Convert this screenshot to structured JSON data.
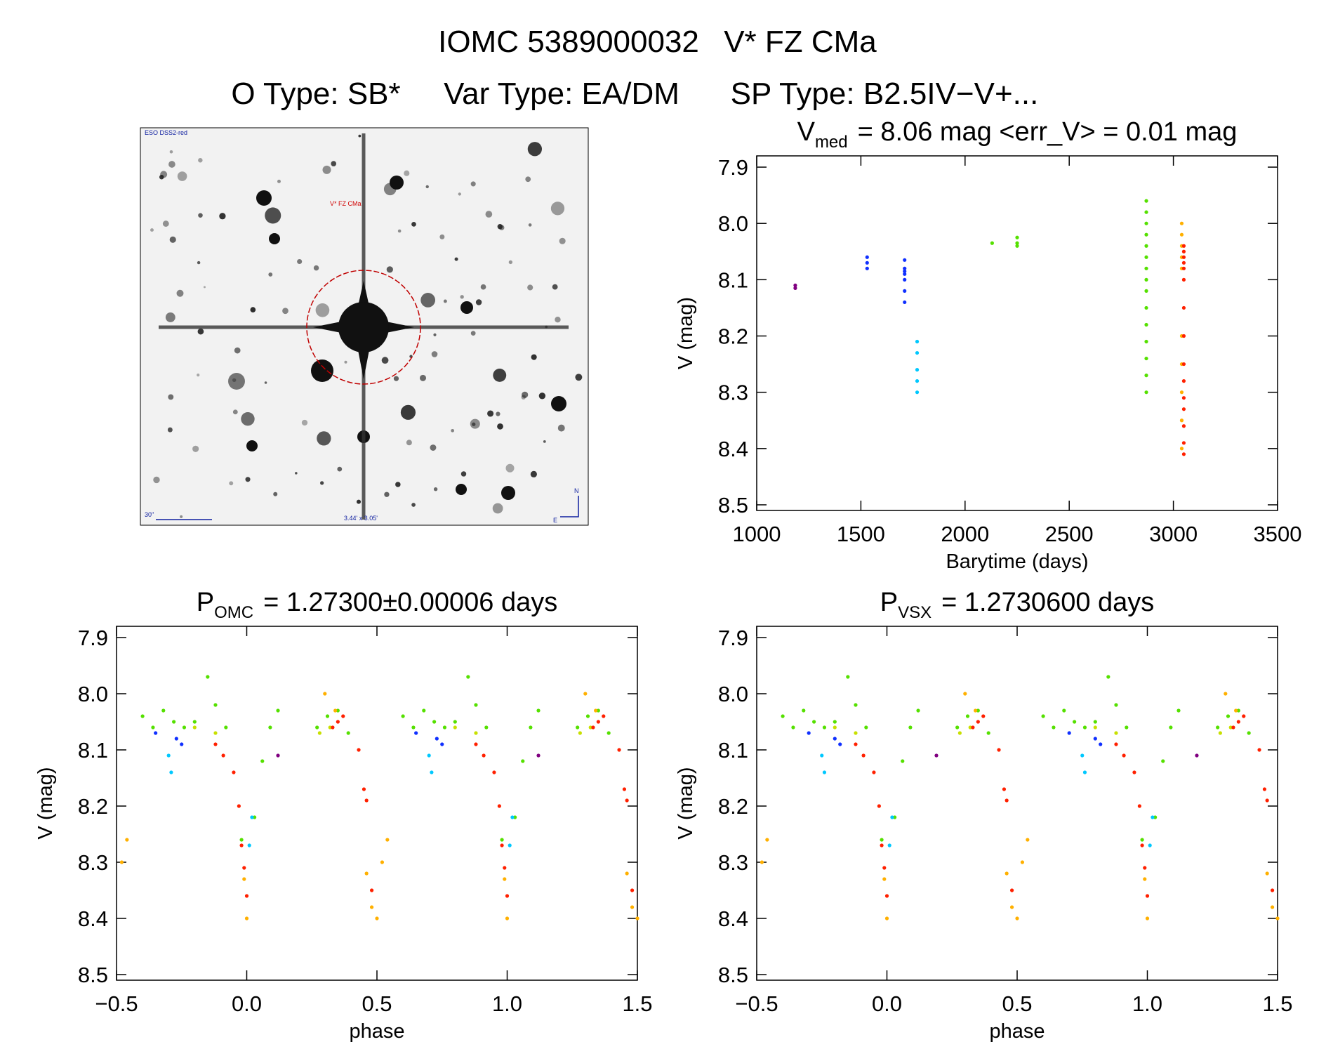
{
  "header": {
    "id": "IOMC 5389000032",
    "name": "V* FZ CMa",
    "object_type": "O Type: SB*",
    "var_type": "Var Type: EA/DM",
    "sp_type": "SP Type: B2.5IV−V+..."
  },
  "image": {
    "survey": "ESO DSS2-red",
    "target": "V* FZ CMa",
    "scale": "30\"",
    "field": "3.44' x 3.05'",
    "north": "N",
    "east": "E"
  },
  "chart_data": [
    {
      "type": "scatter",
      "title": {
        "symbol": "V",
        "subscript": "med",
        "text": "= 8.06 mag <err_V> = 0.01 mag"
      },
      "x_label": "Barytime (days)",
      "y_label": "V (mag)",
      "xlim": [
        1000,
        3500
      ],
      "xticks": [
        1000,
        1500,
        2000,
        2500,
        3000,
        3500
      ],
      "ylim": [
        8.51,
        7.88
      ],
      "yticks": [
        7.9,
        {
          "value": 8,
          "label": "8.0"
        },
        8.1,
        8.2,
        8.3,
        8.4,
        8.5
      ],
      "series": [
        {
          "color": "#800080",
          "x": [
            1185,
            1185
          ],
          "values": [
            8.11,
            8.115
          ]
        },
        {
          "color": "#1030ff",
          "x": [
            1530,
            1530,
            1530,
            1710,
            1710,
            1710,
            1710,
            1710,
            1710,
            1710
          ],
          "values": [
            8.06,
            8.07,
            8.08,
            8.065,
            8.08,
            8.085,
            8.09,
            8.1,
            8.12,
            8.14
          ]
        },
        {
          "color": "#00c8ff",
          "x": [
            1770,
            1770,
            1770,
            1770,
            1770
          ],
          "values": [
            8.21,
            8.23,
            8.26,
            8.28,
            8.3
          ]
        },
        {
          "color": "#55e000",
          "x": [
            2130,
            2250,
            2250,
            2250,
            2870,
            2870,
            2870,
            2870,
            2870,
            2870,
            2870,
            2870,
            2870,
            2870,
            2870,
            2870,
            2870,
            2870,
            2870
          ],
          "values": [
            8.035,
            8.025,
            8.035,
            8.04,
            7.96,
            7.98,
            8.0,
            8.02,
            8.04,
            8.06,
            8.08,
            8.1,
            8.12,
            8.15,
            8.18,
            8.21,
            8.24,
            8.27,
            8.3
          ]
        },
        {
          "color": "#ffb000",
          "x": [
            3040,
            3040,
            3040,
            3040,
            3040,
            3040,
            3040,
            3040,
            3040,
            3040
          ],
          "values": [
            8.0,
            8.02,
            8.04,
            8.06,
            8.08,
            8.2,
            8.25,
            8.3,
            8.35,
            8.4
          ]
        },
        {
          "color": "#ff2000",
          "x": [
            3050,
            3050,
            3050,
            3050,
            3050,
            3050,
            3050,
            3050,
            3050,
            3050,
            3050,
            3050,
            3050,
            3050,
            3050
          ],
          "values": [
            8.04,
            8.05,
            8.06,
            8.07,
            8.08,
            8.1,
            8.15,
            8.2,
            8.25,
            8.28,
            8.31,
            8.33,
            8.36,
            8.39,
            8.41
          ]
        }
      ]
    },
    {
      "type": "scatter",
      "title": {
        "symbol": "P",
        "subscript": "OMC",
        "text": "= 1.27300±0.00006 days"
      },
      "x_label": "phase",
      "y_label": "V (mag)",
      "xlim": [
        -0.5,
        1.5
      ],
      "xticks": [
        {
          "value": -0.5,
          "label": "−0.5"
        },
        {
          "value": 0,
          "label": "0.0"
        },
        0.5,
        {
          "value": 1,
          "label": "1.0"
        },
        1.5
      ],
      "ylim": [
        8.51,
        7.88
      ],
      "yticks": [
        7.9,
        {
          "value": 8,
          "label": "8.0"
        },
        8.1,
        8.2,
        8.3,
        8.4,
        8.5
      ],
      "series": [
        {
          "color": "#55e000",
          "x": [
            -0.4,
            -0.36,
            -0.32,
            -0.28,
            -0.24,
            -0.2,
            -0.15,
            -0.12,
            -0.08,
            -0.02,
            0.03,
            0.06,
            0.09,
            0.12,
            0.27,
            0.31,
            0.35,
            0.39,
            0.6,
            0.64,
            0.68,
            0.72,
            0.76,
            0.8,
            0.85,
            0.88,
            0.92,
            0.98,
            1.03,
            1.06,
            1.09,
            1.12,
            1.27,
            1.31,
            1.35,
            1.39
          ],
          "values": [
            8.04,
            8.06,
            8.03,
            8.05,
            8.06,
            8.05,
            7.97,
            8.02,
            8.06,
            8.26,
            8.22,
            8.12,
            8.06,
            8.03,
            8.06,
            8.04,
            8.03,
            8.07,
            8.04,
            8.06,
            8.03,
            8.05,
            8.06,
            8.05,
            7.97,
            8.02,
            8.06,
            8.26,
            8.22,
            8.12,
            8.06,
            8.03,
            8.06,
            8.04,
            8.03,
            8.07
          ]
        },
        {
          "color": "#c8e000",
          "x": [
            -0.2,
            -0.12,
            0.28,
            0.32,
            0.8,
            0.88,
            1.28,
            1.32
          ],
          "values": [
            8.06,
            8.07,
            8.07,
            8.06,
            8.06,
            8.07,
            8.07,
            8.06
          ]
        },
        {
          "color": "#ffb000",
          "x": [
            -0.48,
            -0.46,
            0.3,
            0.34,
            -0.01,
            0.0,
            0.46,
            0.48,
            0.5,
            0.52,
            0.54,
            1.3,
            1.34,
            0.99,
            1.0,
            1.46,
            1.48,
            1.5
          ],
          "values": [
            8.3,
            8.26,
            8.0,
            8.03,
            8.33,
            8.4,
            8.32,
            8.38,
            8.4,
            8.3,
            8.26,
            8.0,
            8.03,
            8.33,
            8.4,
            8.32,
            8.38,
            8.4
          ]
        },
        {
          "color": "#ff2000",
          "x": [
            -0.12,
            -0.09,
            -0.05,
            -0.03,
            -0.02,
            -0.01,
            0.0,
            0.33,
            0.35,
            0.37,
            0.43,
            0.45,
            0.46,
            0.48,
            0.88,
            0.91,
            0.95,
            0.97,
            0.98,
            0.99,
            1.0,
            1.33,
            1.35,
            1.37,
            1.43,
            1.45,
            1.46,
            1.48
          ],
          "values": [
            8.09,
            8.11,
            8.14,
            8.2,
            8.27,
            8.31,
            8.36,
            8.06,
            8.05,
            8.04,
            8.1,
            8.17,
            8.19,
            8.35,
            8.09,
            8.11,
            8.14,
            8.2,
            8.27,
            8.31,
            8.36,
            8.06,
            8.05,
            8.04,
            8.1,
            8.17,
            8.19,
            8.35
          ]
        },
        {
          "color": "#1030ff",
          "x": [
            -0.35,
            -0.27,
            -0.25,
            0.65,
            0.73,
            0.75
          ],
          "values": [
            8.07,
            8.08,
            8.09,
            8.07,
            8.08,
            8.09
          ]
        },
        {
          "color": "#00c8ff",
          "x": [
            -0.3,
            -0.29,
            0.01,
            0.02,
            0.7,
            0.71,
            1.01,
            1.02
          ],
          "values": [
            8.11,
            8.14,
            8.27,
            8.22,
            8.11,
            8.14,
            8.27,
            8.22
          ]
        },
        {
          "color": "#800080",
          "x": [
            0.12,
            1.12
          ],
          "values": [
            8.11,
            8.11
          ]
        }
      ]
    },
    {
      "type": "scatter",
      "title": {
        "symbol": "P",
        "subscript": "VSX",
        "text": "= 1.2730600 days"
      },
      "x_label": "phase",
      "y_label": "V (mag)",
      "xlim": [
        -0.5,
        1.5
      ],
      "xticks": [
        {
          "value": -0.5,
          "label": "−0.5"
        },
        {
          "value": 0,
          "label": "0.0"
        },
        0.5,
        {
          "value": 1,
          "label": "1.0"
        },
        1.5
      ],
      "ylim": [
        8.51,
        7.88
      ],
      "yticks": [
        7.9,
        {
          "value": 8,
          "label": "8.0"
        },
        8.1,
        8.2,
        8.3,
        8.4,
        8.5
      ],
      "series": [
        {
          "color": "#55e000",
          "x": [
            -0.4,
            -0.36,
            -0.32,
            -0.28,
            -0.24,
            -0.2,
            -0.15,
            -0.12,
            -0.08,
            -0.02,
            0.03,
            0.06,
            0.09,
            0.12,
            0.27,
            0.31,
            0.35,
            0.39,
            0.6,
            0.64,
            0.68,
            0.72,
            0.76,
            0.8,
            0.85,
            0.88,
            0.92,
            0.98,
            1.03,
            1.06,
            1.09,
            1.12,
            1.27,
            1.31,
            1.35,
            1.39
          ],
          "values": [
            8.04,
            8.06,
            8.03,
            8.05,
            8.06,
            8.05,
            7.97,
            8.02,
            8.06,
            8.26,
            8.22,
            8.12,
            8.06,
            8.03,
            8.06,
            8.04,
            8.03,
            8.07,
            8.04,
            8.06,
            8.03,
            8.05,
            8.06,
            8.05,
            7.97,
            8.02,
            8.06,
            8.26,
            8.22,
            8.12,
            8.06,
            8.03,
            8.06,
            8.04,
            8.03,
            8.07
          ]
        },
        {
          "color": "#c8e000",
          "x": [
            -0.2,
            -0.12,
            0.28,
            0.32,
            0.8,
            0.88,
            1.28,
            1.32
          ],
          "values": [
            8.06,
            8.07,
            8.07,
            8.06,
            8.06,
            8.07,
            8.07,
            8.06
          ]
        },
        {
          "color": "#ffb000",
          "x": [
            -0.48,
            -0.46,
            0.3,
            0.34,
            -0.01,
            0.0,
            0.46,
            0.48,
            0.5,
            0.52,
            0.54,
            1.3,
            1.34,
            0.99,
            1.0,
            1.46,
            1.48,
            1.5
          ],
          "values": [
            8.3,
            8.26,
            8.0,
            8.03,
            8.33,
            8.4,
            8.32,
            8.38,
            8.4,
            8.3,
            8.26,
            8.0,
            8.03,
            8.33,
            8.4,
            8.32,
            8.38,
            8.4
          ]
        },
        {
          "color": "#ff2000",
          "x": [
            -0.12,
            -0.09,
            -0.05,
            -0.03,
            -0.02,
            -0.01,
            0.0,
            0.33,
            0.35,
            0.37,
            0.43,
            0.45,
            0.46,
            0.48,
            0.88,
            0.91,
            0.95,
            0.97,
            0.98,
            0.99,
            1.0,
            1.33,
            1.35,
            1.37,
            1.43,
            1.45,
            1.46,
            1.48
          ],
          "values": [
            8.09,
            8.11,
            8.14,
            8.2,
            8.27,
            8.31,
            8.36,
            8.06,
            8.05,
            8.04,
            8.1,
            8.17,
            8.19,
            8.35,
            8.09,
            8.11,
            8.14,
            8.2,
            8.27,
            8.31,
            8.36,
            8.06,
            8.05,
            8.04,
            8.1,
            8.17,
            8.19,
            8.35
          ]
        },
        {
          "color": "#1030ff",
          "x": [
            -0.3,
            -0.2,
            -0.18,
            0.7,
            0.8,
            0.82
          ],
          "values": [
            8.07,
            8.08,
            8.09,
            8.07,
            8.08,
            8.09
          ]
        },
        {
          "color": "#00c8ff",
          "x": [
            -0.25,
            -0.24,
            0.01,
            0.02,
            0.75,
            0.76,
            1.01,
            1.02
          ],
          "values": [
            8.11,
            8.14,
            8.27,
            8.22,
            8.11,
            8.14,
            8.27,
            8.22
          ]
        },
        {
          "color": "#800080",
          "x": [
            0.19,
            1.19
          ],
          "values": [
            8.11,
            8.11
          ]
        }
      ]
    }
  ]
}
